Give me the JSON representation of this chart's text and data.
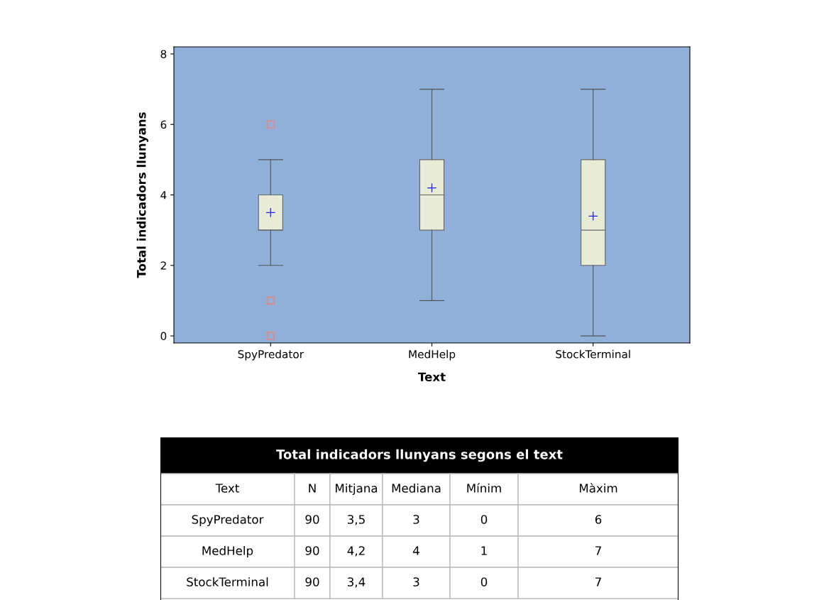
{
  "chart_data": [
    {
      "type": "box",
      "xlabel": "Text",
      "ylabel": "Total indicadors llunyans",
      "categories": [
        "SpyPredator",
        "MedHelp",
        "StockTerminal"
      ],
      "boxes": [
        {
          "low": 2,
          "q1": 3,
          "median": 3,
          "q3": 4,
          "high": 5,
          "mean": 3.5,
          "outliers": [
            6,
            1,
            0
          ]
        },
        {
          "low": 1,
          "q1": 3,
          "median": 4,
          "q3": 5,
          "high": 7,
          "mean": 4.2
        },
        {
          "low": 0,
          "q1": 2,
          "median": 3,
          "q3": 5,
          "high": 7,
          "mean": 3.4
        }
      ],
      "color": "#e8ecd6",
      "ylim": [
        -0.2,
        8.2
      ],
      "yticks": [
        0,
        2,
        4,
        6,
        8
      ],
      "grid": false
    },
    {
      "type": "other",
      "title": "Total indicadors llunyans segons el text",
      "categories": [
        "Text",
        "N",
        "Mitjana",
        "Mediana",
        "Mínim",
        "Màxim"
      ],
      "y_categories": [
        "SpyPredator",
        "MedHelp",
        "StockTerminal"
      ],
      "cell_labels": [
        [
          "90",
          "3,5",
          "3",
          "0",
          "6"
        ],
        [
          "90",
          "4,2",
          "4",
          "1",
          "7"
        ],
        [
          "90",
          "3,4",
          "3",
          "0",
          "7"
        ]
      ]
    }
  ]
}
